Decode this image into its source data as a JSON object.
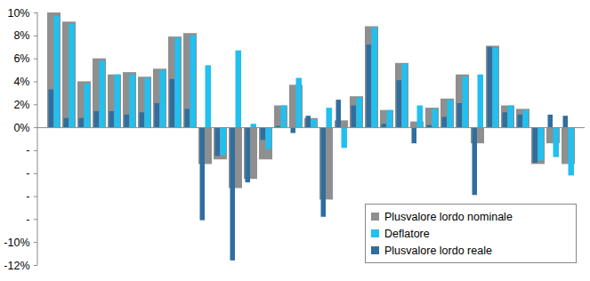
{
  "chart_data": {
    "type": "bar",
    "categories": [
      null,
      null,
      null,
      null,
      null,
      null,
      null,
      null,
      null,
      null,
      null,
      null,
      null,
      null,
      null,
      null,
      null,
      null,
      null,
      null,
      null,
      null,
      null,
      null,
      null,
      null,
      null,
      null,
      null,
      null,
      null,
      null,
      null,
      null,
      null
    ],
    "series": [
      {
        "name": "Plusvalore lordo nominale",
        "color": "#8f8f8f",
        "values": [
          10.0,
          9.2,
          4.0,
          6.0,
          4.6,
          4.8,
          4.4,
          5.1,
          7.9,
          8.2,
          -3.2,
          -2.8,
          -5.3,
          -4.5,
          -2.8,
          1.9,
          3.7,
          0.8,
          -6.3,
          0.6,
          2.7,
          8.8,
          1.5,
          5.6,
          0.5,
          1.7,
          2.5,
          4.6,
          -1.4,
          7.1,
          1.9,
          1.6,
          -3.2,
          -1.4,
          -3.2
        ]
      },
      {
        "name": "Deflatore",
        "color": "#21c0f0",
        "values": [
          9.7,
          9.0,
          3.8,
          5.8,
          4.6,
          4.6,
          4.3,
          5.0,
          7.8,
          8.0,
          5.4,
          -2.4,
          6.7,
          0.3,
          -1.9,
          1.9,
          4.3,
          0.7,
          1.7,
          -1.8,
          2.6,
          8.7,
          1.5,
          5.5,
          1.9,
          1.6,
          2.4,
          4.4,
          4.6,
          6.9,
          1.9,
          1.5,
          -2.9,
          -2.6,
          -4.2
        ]
      },
      {
        "name": "Plusvalore lordo reale",
        "color": "#2f6e9f",
        "values": [
          3.3,
          0.8,
          0.8,
          1.4,
          1.4,
          1.1,
          1.3,
          2.1,
          4.2,
          1.6,
          -8.1,
          -2.5,
          -11.6,
          -4.8,
          -1.1,
          0.1,
          -0.5,
          1.0,
          -7.8,
          2.4,
          1.9,
          7.2,
          0.3,
          4.1,
          -1.4,
          0.2,
          0.9,
          2.1,
          -5.9,
          7.0,
          1.3,
          1.1,
          -3.1,
          1.1,
          1.0
        ]
      }
    ],
    "ylim": [
      -12,
      10
    ],
    "yticks": [
      {
        "value": 10,
        "label": "10%"
      },
      {
        "value": 8,
        "label": "8%"
      },
      {
        "value": 6,
        "label": "6%"
      },
      {
        "value": 4,
        "label": "4%"
      },
      {
        "value": 2,
        "label": "2%"
      },
      {
        "value": 0,
        "label": "0%"
      },
      {
        "value": -2,
        "label": "-"
      },
      {
        "value": -4,
        "label": "-"
      },
      {
        "value": -6,
        "label": "-"
      },
      {
        "value": -8,
        "label": "-"
      },
      {
        "value": -10,
        "label": "-10%"
      },
      {
        "value": -12,
        "label": "-12%"
      }
    ],
    "grid": false,
    "legend": "bottom-right",
    "tick_labels": "y"
  }
}
